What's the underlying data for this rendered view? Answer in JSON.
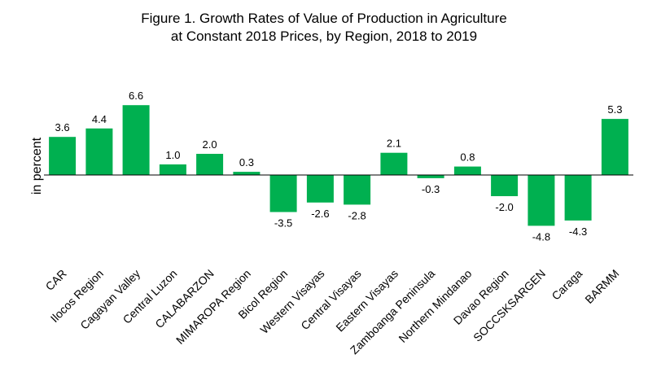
{
  "chart_data": {
    "type": "bar",
    "title": "Figure 1. Growth Rates of Value of Production in Agriculture",
    "subtitle": "at Constant 2018 Prices, by Region, 2018 to 2019",
    "xlabel": "",
    "ylabel": "in percent",
    "ylim": [
      -6.5,
      7.5
    ],
    "grid": false,
    "legend": "none",
    "bar_color": "#00b050",
    "categories": [
      "CAR",
      "Ilocos Region",
      "Cagayan Valley",
      "Central Luzon",
      "CALABARZON",
      "MIMAROPA Region",
      "Bicol Region",
      "Western Visayas",
      "Central Visayas",
      "Eastern Visayas",
      "Zamboanga Peninsula",
      "Northern Mindanao",
      "Davao Region",
      "SOCCSKSARGEN",
      "Caraga",
      "BARMM"
    ],
    "values": [
      3.6,
      4.4,
      6.6,
      1.0,
      2.0,
      0.3,
      -3.5,
      -2.6,
      -2.8,
      2.1,
      -0.3,
      0.8,
      -2.0,
      -4.8,
      -4.3,
      5.3
    ],
    "data_labels": [
      "3.6",
      "4.4",
      "6.6",
      "1.0",
      "2.0",
      "0.3",
      "-3.5",
      "-2.6",
      "-2.8",
      "2.1",
      "-0.3",
      "0.8",
      "-2.0",
      "-4.8",
      "-4.3",
      "5.3"
    ]
  }
}
